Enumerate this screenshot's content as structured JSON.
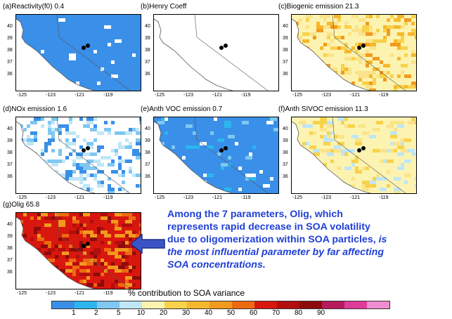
{
  "panels": [
    {
      "id": "a",
      "title": "(a)Reactivity(f0)",
      "value": "0.4",
      "theme": "blue"
    },
    {
      "id": "b",
      "title": "(b)Henry Coeff",
      "value": "",
      "theme": "empty"
    },
    {
      "id": "c",
      "title": "(c)Biogenic emission",
      "value": "21.3",
      "theme": "yellow"
    },
    {
      "id": "d",
      "title": "(d)NOx emission",
      "value": "1.6",
      "theme": "nox"
    },
    {
      "id": "e",
      "title": "(e)Anth VOC emission",
      "value": "0.7",
      "theme": "blue2"
    },
    {
      "id": "f",
      "title": "(f)Anth SIVOC emission",
      "value": "11.3",
      "theme": "sivoc"
    },
    {
      "id": "g",
      "title": "(g)Olig 65.8",
      "value": "",
      "theme": "red"
    }
  ],
  "axes": {
    "y_ticks": [
      "40",
      "39",
      "38",
      "37",
      "36"
    ],
    "x_ticks": [
      "-125",
      "-123",
      "-121",
      "-119"
    ]
  },
  "note": {
    "line1": "Among the 7 parameters, Olig, which",
    "line2": "represents rapid decrease in SOA volatility",
    "line3_normal": "due to oligomerization within SOA particles,",
    "line3_italic": " is",
    "line4": "the most influential parameter by far affecting",
    "line5": "SOA concentrations."
  },
  "colorbar": {
    "title": "% contribution to SOA variance",
    "ticks": [
      "1",
      "2",
      "5",
      "10",
      "20",
      "30",
      "40",
      "50",
      "60",
      "70",
      "80",
      "90"
    ],
    "colors": [
      "#3a8fe8",
      "#2cb6f0",
      "#7ec8f2",
      "#bfe6f7",
      "#fdf3b0",
      "#f8d24a",
      "#f5b82c",
      "#f29a1e",
      "#ee6a10",
      "#d8170e",
      "#b30e0e",
      "#8c0b0b",
      "#b71b5b",
      "#e03a9a",
      "#f08cd0"
    ]
  },
  "colors": {
    "note_text": "#1f3fd6",
    "arrow": "#3b55c8"
  }
}
